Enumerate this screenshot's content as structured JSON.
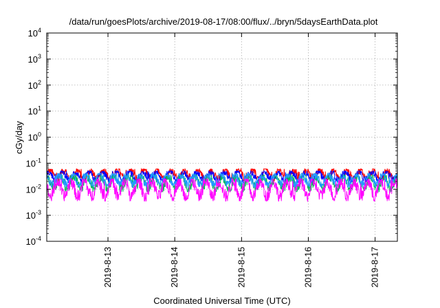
{
  "chart_data": {
    "type": "line",
    "title": "/data/run/goesPlots/archive/2019-08-17/08:00/flux/../bryn/5daysEarthData.plot",
    "xlabel": "Coordinated Universal Time (UTC)",
    "ylabel": "cGy/day",
    "yscale": "log",
    "ylim": [
      0.0001,
      10000
    ],
    "yticks": [
      {
        "value": 0.0001,
        "base": "10",
        "exp": "-4"
      },
      {
        "value": 0.001,
        "base": "10",
        "exp": "-3"
      },
      {
        "value": 0.01,
        "base": "10",
        "exp": "-2"
      },
      {
        "value": 0.1,
        "base": "10",
        "exp": "-1"
      },
      {
        "value": 1,
        "base": "10",
        "exp": "0"
      },
      {
        "value": 10,
        "base": "10",
        "exp": "1"
      },
      {
        "value": 100,
        "base": "10",
        "exp": "2"
      },
      {
        "value": 1000,
        "base": "10",
        "exp": "3"
      },
      {
        "value": 10000,
        "base": "10",
        "exp": "4"
      }
    ],
    "xlim": [
      "2019-08-12 02:00",
      "2019-08-17 08:00"
    ],
    "xticks": [
      "2019-8-13",
      "2019-8-14",
      "2019-8-15",
      "2019-8-16",
      "2019-8-17"
    ],
    "grid": true,
    "series": [
      {
        "color": "#ff0000",
        "low": 0.02,
        "high": 0.06
      },
      {
        "color": "#0000ff",
        "low": 0.018,
        "high": 0.05
      },
      {
        "color": "#00bb55",
        "low": 0.008,
        "high": 0.035
      },
      {
        "color": "#2299ff",
        "low": 0.012,
        "high": 0.04
      },
      {
        "color": "#ff00ff",
        "low": 0.0035,
        "high": 0.025
      }
    ]
  }
}
